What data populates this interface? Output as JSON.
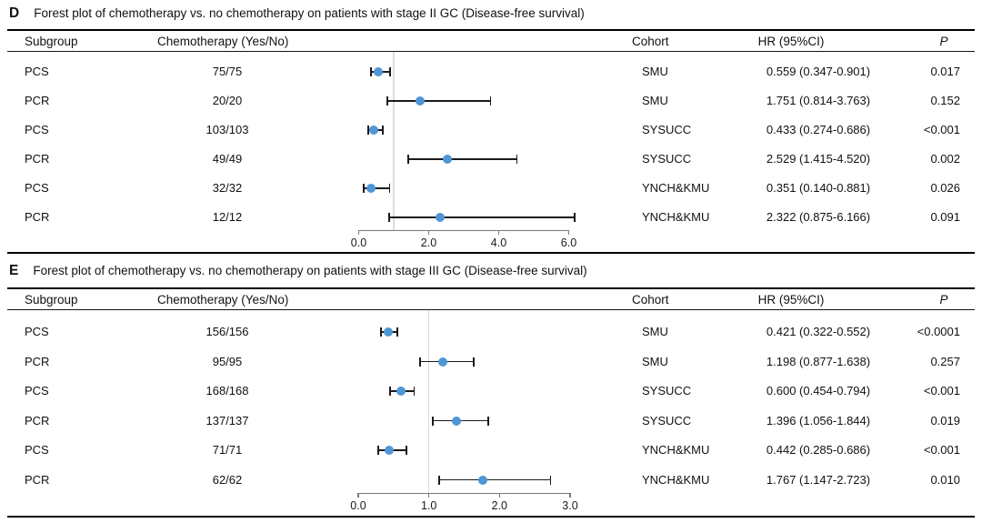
{
  "colors": {
    "marker": "#4e96d5",
    "error_bar": "#1b1b1b",
    "ref_line": "#dcdcdc",
    "axis": "#7a7a7a",
    "border": "#000000",
    "text": "#111111"
  },
  "chart_data": [
    {
      "type": "scatter",
      "plot_style": "forest",
      "panel_letter": "D",
      "title": "Forest plot of chemotherapy vs. no chemotherapy on patients with stage II GC (Disease-free survival)",
      "columns": {
        "subgroup": "Subgroup",
        "chemotherapy": "Chemotherapy (Yes/No)",
        "cohort": "Cohort",
        "hr": "HR (95%CI)",
        "p": "P"
      },
      "axis": {
        "min": 0,
        "max": 6,
        "tick_values": [
          0,
          2,
          4,
          6
        ],
        "tick_labels": [
          "0.0",
          "2.0",
          "4.0",
          "6.0"
        ],
        "reference_line": 1.0,
        "grid": false
      },
      "rows": [
        {
          "subgroup": "PCS",
          "chemotherapy_yes_no": "75/75",
          "cohort": "SMU",
          "hr": 0.559,
          "ci_low": 0.347,
          "ci_high": 0.901,
          "hr_ci_text": "0.559 (0.347-0.901)",
          "p": "0.017"
        },
        {
          "subgroup": "PCR",
          "chemotherapy_yes_no": "20/20",
          "cohort": "SMU",
          "hr": 1.751,
          "ci_low": 0.814,
          "ci_high": 3.763,
          "hr_ci_text": "1.751 (0.814-3.763)",
          "p": "0.152"
        },
        {
          "subgroup": "PCS",
          "chemotherapy_yes_no": "103/103",
          "cohort": "SYSUCC",
          "hr": 0.433,
          "ci_low": 0.274,
          "ci_high": 0.686,
          "hr_ci_text": "0.433 (0.274-0.686)",
          "p": "<0.001"
        },
        {
          "subgroup": "PCR",
          "chemotherapy_yes_no": "49/49",
          "cohort": "SYSUCC",
          "hr": 2.529,
          "ci_low": 1.415,
          "ci_high": 4.52,
          "hr_ci_text": "2.529 (1.415-4.520)",
          "p": "0.002"
        },
        {
          "subgroup": "PCS",
          "chemotherapy_yes_no": "32/32",
          "cohort": "YNCH&KMU",
          "hr": 0.351,
          "ci_low": 0.14,
          "ci_high": 0.881,
          "hr_ci_text": "0.351 (0.140-0.881)",
          "p": "0.026"
        },
        {
          "subgroup": "PCR",
          "chemotherapy_yes_no": "12/12",
          "cohort": "YNCH&KMU",
          "hr": 2.322,
          "ci_low": 0.875,
          "ci_high": 6.166,
          "hr_ci_text": "2.322 (0.875-6.166)",
          "p": "0.091"
        }
      ]
    },
    {
      "type": "scatter",
      "plot_style": "forest",
      "panel_letter": "E",
      "title": "Forest plot of chemotherapy vs. no chemotherapy on patients with stage III GC (Disease-free survival)",
      "columns": {
        "subgroup": "Subgroup",
        "chemotherapy": "Chemotherapy (Yes/No)",
        "cohort": "Cohort",
        "hr": "HR (95%CI)",
        "p": "P"
      },
      "axis": {
        "min": 0,
        "max": 3,
        "tick_values": [
          0,
          1,
          2,
          3
        ],
        "tick_labels": [
          "0.0",
          "1.0",
          "2.0",
          "3.0"
        ],
        "reference_line": 1.0,
        "grid": false
      },
      "rows": [
        {
          "subgroup": "PCS",
          "chemotherapy_yes_no": "156/156",
          "cohort": "SMU",
          "hr": 0.421,
          "ci_low": 0.322,
          "ci_high": 0.552,
          "hr_ci_text": "0.421 (0.322-0.552)",
          "p": "<0.0001"
        },
        {
          "subgroup": "PCR",
          "chemotherapy_yes_no": "95/95",
          "cohort": "SMU",
          "hr": 1.198,
          "ci_low": 0.877,
          "ci_high": 1.638,
          "hr_ci_text": "1.198 (0.877-1.638)",
          "p": "0.257"
        },
        {
          "subgroup": "PCS",
          "chemotherapy_yes_no": "168/168",
          "cohort": "SYSUCC",
          "hr": 0.6,
          "ci_low": 0.454,
          "ci_high": 0.794,
          "hr_ci_text": "0.600 (0.454-0.794)",
          "p": "<0.001"
        },
        {
          "subgroup": "PCR",
          "chemotherapy_yes_no": "137/137",
          "cohort": "SYSUCC",
          "hr": 1.396,
          "ci_low": 1.056,
          "ci_high": 1.844,
          "hr_ci_text": "1.396 (1.056-1.844)",
          "p": "0.019"
        },
        {
          "subgroup": "PCS",
          "chemotherapy_yes_no": "71/71",
          "cohort": "YNCH&KMU",
          "hr": 0.442,
          "ci_low": 0.285,
          "ci_high": 0.686,
          "hr_ci_text": "0.442 (0.285-0.686)",
          "p": "<0.001"
        },
        {
          "subgroup": "PCR",
          "chemotherapy_yes_no": "62/62",
          "cohort": "YNCH&KMU",
          "hr": 1.767,
          "ci_low": 1.147,
          "ci_high": 2.723,
          "hr_ci_text": "1.767 (1.147-2.723)",
          "p": "0.010"
        }
      ]
    }
  ]
}
